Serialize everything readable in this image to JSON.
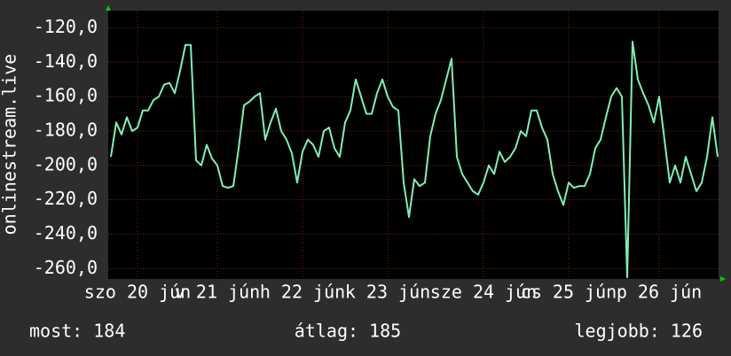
{
  "chart_data": {
    "type": "line",
    "y_label": "onlinestream.live",
    "color": "#7ff0b4",
    "values": [
      -195,
      -175,
      -182,
      -172,
      -180,
      -178,
      -168,
      -168,
      -162,
      -160,
      -153,
      -152,
      -158,
      -145,
      -130,
      -130,
      -197,
      -200,
      -188,
      -196,
      -200,
      -212,
      -213,
      -212,
      -190,
      -165,
      -163,
      -160,
      -158,
      -185,
      -175,
      -167,
      -180,
      -185,
      -193,
      -210,
      -192,
      -185,
      -188,
      -195,
      -180,
      -178,
      -190,
      -195,
      -175,
      -168,
      -150,
      -160,
      -170,
      -170,
      -158,
      -150,
      -160,
      -166,
      -168,
      -210,
      -230,
      -208,
      -212,
      -210,
      -183,
      -170,
      -162,
      -150,
      -138,
      -195,
      -205,
      -210,
      -215,
      -217,
      -210,
      -200,
      -205,
      -192,
      -198,
      -195,
      -190,
      -180,
      -183,
      -168,
      -168,
      -178,
      -185,
      -205,
      -215,
      -223,
      -210,
      -213,
      -212,
      -212,
      -205,
      -190,
      -185,
      -172,
      -160,
      -155,
      -160,
      -265,
      -128,
      -150,
      -158,
      -165,
      -175,
      -160,
      -185,
      -210,
      -200,
      -210,
      -195,
      -205,
      -215,
      -210,
      -195,
      -172,
      -195
    ],
    "xlim": [
      0,
      114
    ],
    "xticks": [
      {
        "value": 5,
        "label": "szo 20 jún"
      },
      {
        "value": 20,
        "label": "v 21 jún"
      },
      {
        "value": 36,
        "label": "h 22 jún"
      },
      {
        "value": 52,
        "label": "k 23 jún"
      },
      {
        "value": 70,
        "label": "sze 24 jún"
      },
      {
        "value": 86,
        "label": "cs 25 jún"
      },
      {
        "value": 103,
        "label": "p 26 jún"
      }
    ],
    "ylim": [
      -266,
      -110
    ],
    "yticks": [
      {
        "value": -120,
        "label": "-120,0"
      },
      {
        "value": -140,
        "label": "-140,0"
      },
      {
        "value": -160,
        "label": "-160,0"
      },
      {
        "value": -180,
        "label": "-180,0"
      },
      {
        "value": -200,
        "label": "-200,0"
      },
      {
        "value": -220,
        "label": "-220,0"
      },
      {
        "value": -240,
        "label": "-240,0"
      },
      {
        "value": -260,
        "label": "-260,0"
      }
    ],
    "grid": true,
    "stats": [
      "most: 184",
      "átlag: 185",
      "legjobb: 126"
    ]
  }
}
